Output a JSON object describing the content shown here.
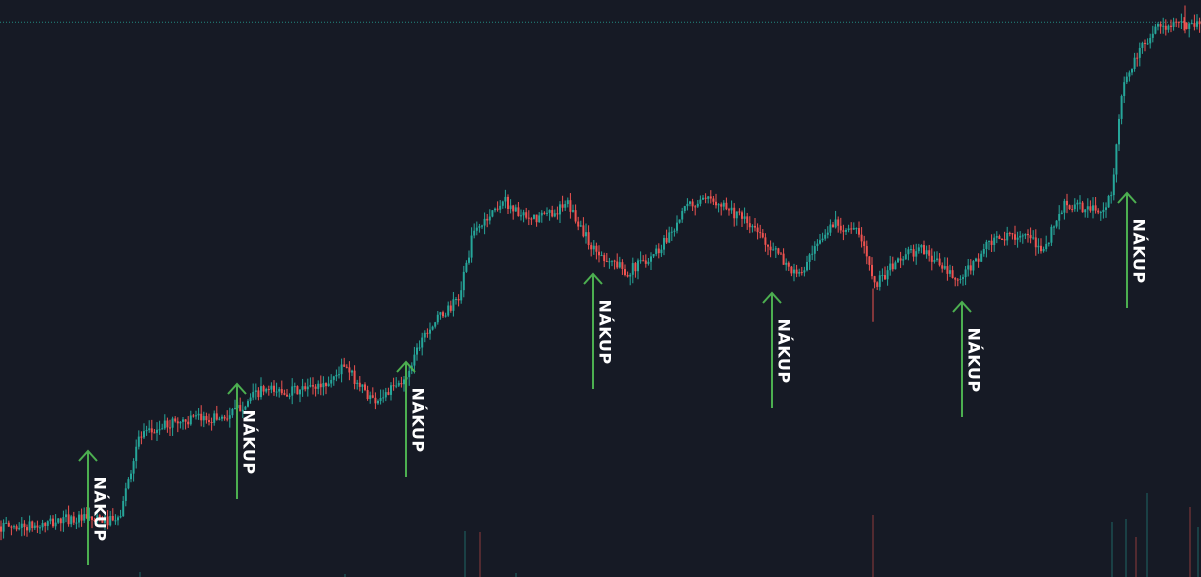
{
  "chart_data": {
    "type": "candlestick",
    "title": "",
    "xlabel": "",
    "ylabel": "",
    "grid": false,
    "colors": {
      "background": "#161a25",
      "up": "#26a69a",
      "down": "#ef5350",
      "arrow": "#4caf50",
      "label": "#ffffff",
      "price_line": "#26a69a"
    },
    "price_line_value": 100,
    "ylim": [
      0,
      104
    ],
    "trend_anchors": [
      [
        0,
        9.1
      ],
      [
        40,
        9.1
      ],
      [
        70,
        10.5
      ],
      [
        120,
        10.0
      ],
      [
        140,
        25.0
      ],
      [
        175,
        28.0
      ],
      [
        230,
        29.0
      ],
      [
        262,
        33.5
      ],
      [
        300,
        33.5
      ],
      [
        330,
        35.0
      ],
      [
        345,
        38.0
      ],
      [
        375,
        31.8
      ],
      [
        405,
        35.0
      ],
      [
        425,
        44.0
      ],
      [
        460,
        50.0
      ],
      [
        475,
        62.0
      ],
      [
        505,
        68.0
      ],
      [
        530,
        64.0
      ],
      [
        570,
        67.0
      ],
      [
        595,
        59.0
      ],
      [
        630,
        55.0
      ],
      [
        660,
        59.0
      ],
      [
        690,
        67.0
      ],
      [
        720,
        68.0
      ],
      [
        760,
        62.0
      ],
      [
        800,
        54.0
      ],
      [
        835,
        64.0
      ],
      [
        860,
        62.0
      ],
      [
        878,
        53.0
      ],
      [
        905,
        58.0
      ],
      [
        925,
        59.0
      ],
      [
        960,
        53.0
      ],
      [
        990,
        60.0
      ],
      [
        1020,
        62.0
      ],
      [
        1045,
        59.0
      ],
      [
        1065,
        67.0
      ],
      [
        1100,
        66.0
      ],
      [
        1112,
        68.0
      ],
      [
        1125,
        89.0
      ],
      [
        1155,
        99.0
      ],
      [
        1201,
        100.0
      ]
    ],
    "buy_signals": [
      {
        "label": "NÁKUP"
      },
      {
        "label": "NÁKUP"
      },
      {
        "label": "NÁKUP"
      },
      {
        "label": "NÁKUP"
      },
      {
        "label": "NÁKUP"
      },
      {
        "label": "NÁKUP"
      },
      {
        "label": "NÁKUP"
      }
    ]
  }
}
